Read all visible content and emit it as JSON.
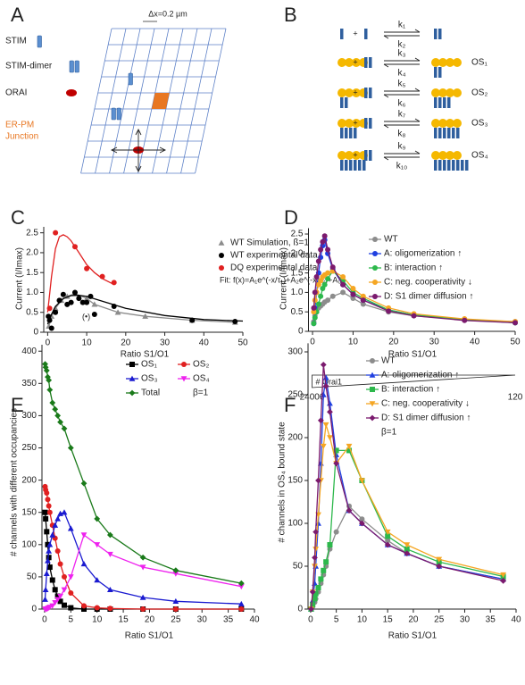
{
  "diagrams": {
    "A": {
      "panel_label": "A",
      "scale": "Δx=0.2 µm",
      "legend": [
        "STIM",
        "STIM-dimer",
        "ORAI"
      ],
      "junction": [
        "ER-PM",
        "Junction"
      ]
    },
    "B": {
      "panel_label": "B",
      "plus": "+",
      "rates": [
        [
          "k₁",
          "k₂"
        ],
        [
          "k₃",
          "k₄"
        ],
        [
          "k₅",
          "k₆"
        ],
        [
          "k₇",
          "k₈"
        ],
        [
          "k₉",
          "k₁₀"
        ]
      ],
      "states": [
        "OS₁",
        "OS₂",
        "OS₃",
        "OS₄"
      ]
    }
  },
  "chart_data": [
    {
      "type": "line",
      "panel_label": "C",
      "xlabel": "Ratio S1/O1",
      "ylabel": "Current (I/Imax)",
      "xlim": [
        -1,
        50
      ],
      "ylim": [
        0,
        2.65
      ],
      "xticks": [
        0,
        10,
        20,
        30,
        40,
        50
      ],
      "yticks": [
        0,
        0.5,
        {
          "value": 1,
          "label": "1.0"
        },
        1.5,
        {
          "value": 2,
          "label": "2.0"
        },
        2.5
      ],
      "annotations": [
        "Fit: f(x)=A₁e^(-x/τ₁)+A₂e^(-x/τ₂)+A₀",
        "(•)"
      ],
      "series": [
        {
          "name": "WT Simulation, ß=1",
          "color": "#8c8c8c",
          "marker": "triangle",
          "line": true,
          "x": [
            0.3,
            1,
            2,
            3.5,
            5,
            7,
            10,
            12,
            18,
            25,
            37,
            48
          ],
          "values": [
            0.15,
            0.4,
            0.6,
            0.8,
            0.9,
            0.97,
            0.85,
            0.7,
            0.5,
            0.4,
            0.3,
            0.25
          ]
        },
        {
          "name": "WT experimental data",
          "color": "#000000",
          "marker": "circle",
          "line": false,
          "x": [
            0.2,
            0.5,
            1,
            2,
            3,
            4,
            5,
            6,
            7,
            8,
            9,
            10,
            11,
            12,
            17,
            37,
            48
          ],
          "values": [
            0.4,
            0.3,
            0.1,
            0.5,
            0.8,
            0.95,
            0.7,
            0.75,
            1.0,
            0.85,
            0.75,
            0.75,
            0.9,
            0.45,
            0.65,
            0.3,
            0.27
          ]
        },
        {
          "name": "DQ experimental data",
          "color": "#e02020",
          "marker": "circle",
          "line": false,
          "x": [
            0.5,
            2,
            7,
            10,
            14,
            17
          ],
          "values": [
            0.6,
            2.5,
            2.15,
            1.6,
            1.4,
            1.25
          ]
        },
        {
          "color": "#000000",
          "marker": "none",
          "line": true,
          "x": [
            0,
            1,
            2,
            4,
            6,
            8,
            10,
            15,
            20,
            30,
            40,
            50
          ],
          "values": [
            0.2,
            0.45,
            0.65,
            0.85,
            0.92,
            0.93,
            0.9,
            0.75,
            0.6,
            0.42,
            0.32,
            0.28
          ]
        },
        {
          "color": "#e02020",
          "marker": "none",
          "line": true,
          "x": [
            0,
            1,
            2,
            3,
            4,
            5,
            6,
            8,
            10,
            12,
            14,
            17
          ],
          "values": [
            0.5,
            1.4,
            2.1,
            2.4,
            2.45,
            2.4,
            2.3,
            2.0,
            1.7,
            1.5,
            1.35,
            1.2
          ]
        }
      ]
    },
    {
      "type": "line",
      "panel_label": "D",
      "xlabel": "Ratio S1/O1",
      "ylabel": "Current (I/Imax)",
      "xlim": [
        -1,
        50
      ],
      "ylim": [
        0,
        2.65
      ],
      "xticks": [
        0,
        10,
        20,
        30,
        40,
        50
      ],
      "yticks": [
        0,
        0.5,
        {
          "value": 1,
          "label": "1.0"
        },
        1.5,
        {
          "value": 2,
          "label": "2.0"
        },
        2.5
      ],
      "orai_label": "# Orai1",
      "orai_range": [
        24000,
        120
      ],
      "series": [
        {
          "name": "WT",
          "color": "#8c8c8c",
          "marker": "circle",
          "line": true,
          "x": [
            0.3,
            0.6,
            1,
            1.5,
            2,
            2.5,
            3,
            3.75,
            5,
            7.5,
            10,
            12.5,
            18.75,
            25,
            37.5,
            50
          ],
          "values": [
            0.25,
            0.4,
            0.5,
            0.6,
            0.65,
            0.7,
            0.75,
            0.8,
            0.9,
            1.0,
            0.85,
            0.7,
            0.5,
            0.4,
            0.3,
            0.25
          ]
        },
        {
          "name": "A: oligomerization ↑",
          "color": "#2040e0",
          "marker": "circle",
          "line": true,
          "x": [
            0.3,
            0.6,
            1,
            1.5,
            2,
            2.5,
            3,
            3.75,
            5,
            7.5,
            10,
            12.5,
            18.75,
            25,
            37.5,
            50
          ],
          "values": [
            0.2,
            0.6,
            1.0,
            1.5,
            1.9,
            2.2,
            2.35,
            2.0,
            1.6,
            1.2,
            0.95,
            0.8,
            0.55,
            0.42,
            0.3,
            0.22
          ]
        },
        {
          "name": "B: interaction ↑",
          "color": "#2db84c",
          "marker": "circle",
          "line": true,
          "x": [
            0.3,
            0.6,
            1,
            1.5,
            2,
            2.5,
            3,
            3.75,
            5,
            7.5,
            10,
            12.5,
            18.75,
            25,
            37.5,
            50
          ],
          "values": [
            0.2,
            0.35,
            0.5,
            0.7,
            0.9,
            1.1,
            1.2,
            1.35,
            1.55,
            1.3,
            1.0,
            0.85,
            0.55,
            0.42,
            0.3,
            0.22
          ]
        },
        {
          "name": "C: neg. cooperativity ↓",
          "color": "#f5a623",
          "marker": "circle",
          "line": true,
          "x": [
            0.3,
            0.6,
            1,
            1.5,
            2,
            2.5,
            3,
            3.75,
            5,
            7.5,
            10,
            12.5,
            18.75,
            25,
            37.5,
            50
          ],
          "values": [
            0.5,
            0.8,
            1.0,
            1.2,
            1.3,
            1.4,
            1.45,
            1.5,
            1.55,
            1.4,
            1.1,
            0.9,
            0.6,
            0.45,
            0.32,
            0.25
          ]
        },
        {
          "name": "D: S1 dimer diffusion ↑",
          "color": "#7b1a6e",
          "marker": "circle",
          "line": true,
          "x": [
            0.3,
            0.6,
            1,
            1.5,
            2,
            2.5,
            3,
            3.75,
            5,
            7.5,
            10,
            12.5,
            18.75,
            25,
            37.5,
            50
          ],
          "values": [
            0.6,
            1.0,
            1.4,
            1.8,
            2.1,
            2.3,
            2.45,
            2.1,
            1.65,
            1.2,
            0.95,
            0.8,
            0.52,
            0.4,
            0.28,
            0.22
          ]
        }
      ]
    },
    {
      "type": "line",
      "panel_label": "E",
      "xlabel": "Ratio S1/O1",
      "ylabel": "# channels with different occupancies",
      "note": "β=1",
      "xlim": [
        -0.5,
        40
      ],
      "ylim": [
        0,
        410
      ],
      "xticks": [
        0,
        5,
        10,
        15,
        20,
        25,
        30,
        35,
        40
      ],
      "yticks": [
        0,
        50,
        100,
        150,
        200,
        250,
        300,
        350,
        400
      ],
      "series": [
        {
          "name": "OS₁",
          "color": "#000000",
          "marker": "square",
          "line": true,
          "x": [
            0.1,
            0.2,
            0.4,
            0.6,
            0.8,
            1,
            1.5,
            2,
            2.5,
            3,
            3.75,
            5,
            7.5,
            10,
            12.5,
            18.75,
            25,
            37.5
          ],
          "values": [
            150,
            140,
            120,
            100,
            80,
            65,
            45,
            30,
            20,
            12,
            6,
            2,
            0,
            0,
            0,
            0,
            0,
            0
          ]
        },
        {
          "name": "OS₂",
          "color": "#e02020",
          "marker": "circle",
          "line": true,
          "x": [
            0.1,
            0.2,
            0.4,
            0.6,
            0.8,
            1,
            1.5,
            2,
            2.5,
            3,
            3.75,
            5,
            7.5,
            10,
            12.5,
            18.75,
            25,
            37.5
          ],
          "values": [
            190,
            185,
            180,
            170,
            160,
            150,
            130,
            110,
            90,
            70,
            50,
            25,
            5,
            2,
            1,
            0,
            0,
            0
          ]
        },
        {
          "name": "OS₃",
          "color": "#1a1ad0",
          "marker": "triangle",
          "line": true,
          "x": [
            0.1,
            0.2,
            0.4,
            0.6,
            0.8,
            1,
            1.5,
            2,
            2.5,
            3,
            3.75,
            5,
            7.5,
            10,
            12.5,
            18.75,
            25,
            37.5
          ],
          "values": [
            15,
            30,
            55,
            75,
            90,
            100,
            115,
            130,
            140,
            148,
            150,
            125,
            70,
            45,
            30,
            18,
            12,
            8
          ]
        },
        {
          "name": "OS₄",
          "color": "#ee22ee",
          "marker": "tridown",
          "line": true,
          "x": [
            0.1,
            0.2,
            0.4,
            0.6,
            0.8,
            1,
            1.5,
            2,
            2.5,
            3,
            3.75,
            5,
            7.5,
            10,
            12.5,
            18.75,
            25,
            37.5
          ],
          "values": [
            0,
            0,
            0,
            1,
            2,
            3,
            5,
            10,
            15,
            20,
            30,
            50,
            115,
            100,
            85,
            65,
            55,
            35
          ]
        },
        {
          "name": "Total",
          "color": "#1a7a1a",
          "marker": "diamond",
          "line": true,
          "x": [
            0.1,
            0.2,
            0.4,
            0.6,
            0.8,
            1,
            1.5,
            2,
            2.5,
            3,
            3.75,
            5,
            7.5,
            10,
            12.5,
            18.75,
            25,
            37.5
          ],
          "values": [
            380,
            375,
            370,
            360,
            355,
            340,
            320,
            310,
            300,
            290,
            280,
            250,
            195,
            140,
            115,
            80,
            60,
            40
          ]
        }
      ]
    },
    {
      "type": "line",
      "panel_label": "F",
      "xlabel": "Ratio S1/O1",
      "ylabel": "# channels in OS₄ bound state",
      "note": "β=1",
      "xlim": [
        -0.5,
        40
      ],
      "ylim": [
        0,
        310
      ],
      "xticks": [
        0,
        5,
        10,
        15,
        20,
        25,
        30,
        35,
        40
      ],
      "yticks": [
        0,
        50,
        100,
        150,
        200,
        250,
        300
      ],
      "series": [
        {
          "name": "WT",
          "color": "#8c8c8c",
          "marker": "circle",
          "line": true,
          "x": [
            0.1,
            0.4,
            0.8,
            1,
            1.5,
            2,
            2.5,
            3,
            3.75,
            5,
            7.5,
            10,
            15,
            18.75,
            25,
            37.5
          ],
          "values": [
            0,
            3,
            8,
            12,
            20,
            30,
            40,
            50,
            70,
            90,
            120,
            105,
            80,
            65,
            50,
            35
          ]
        },
        {
          "name": "A: oligomerization ↑",
          "color": "#2040e0",
          "marker": "triangle",
          "line": true,
          "x": [
            0.1,
            0.4,
            0.8,
            1,
            1.5,
            2,
            2.5,
            3,
            3.75,
            5,
            7.5,
            10,
            15,
            18.75,
            25,
            37.5
          ],
          "values": [
            0,
            10,
            30,
            50,
            100,
            170,
            250,
            270,
            240,
            180,
            115,
            100,
            75,
            65,
            50,
            35
          ]
        },
        {
          "name": "B: interaction ↑",
          "color": "#2db84c",
          "marker": "square",
          "line": true,
          "x": [
            0.1,
            0.4,
            0.8,
            1,
            1.5,
            2,
            2.5,
            3,
            3.75,
            5,
            7.5,
            10,
            15,
            18.75,
            25,
            37.5
          ],
          "values": [
            0,
            5,
            12,
            18,
            25,
            35,
            45,
            55,
            75,
            185,
            185,
            150,
            85,
            70,
            55,
            38
          ]
        },
        {
          "name": "C: neg. cooperativity ↓",
          "color": "#f5a623",
          "marker": "tridown",
          "line": true,
          "x": [
            0.1,
            0.4,
            0.8,
            1,
            1.5,
            2,
            2.5,
            3,
            3.75,
            5,
            7.5,
            10,
            15,
            18.75,
            25,
            37.5
          ],
          "values": [
            0,
            20,
            50,
            70,
            110,
            150,
            190,
            215,
            200,
            170,
            190,
            150,
            90,
            75,
            58,
            40
          ]
        },
        {
          "name": "D: S1 dimer diffusion ↑",
          "color": "#7b1a6e",
          "marker": "diamond",
          "line": true,
          "x": [
            0.1,
            0.4,
            0.8,
            1,
            1.5,
            2,
            2.5,
            3,
            3.75,
            5,
            7.5,
            10,
            15,
            18.75,
            25,
            37.5
          ],
          "values": [
            0,
            20,
            60,
            90,
            150,
            220,
            285,
            260,
            230,
            170,
            115,
            100,
            75,
            65,
            50,
            33
          ]
        }
      ]
    }
  ]
}
